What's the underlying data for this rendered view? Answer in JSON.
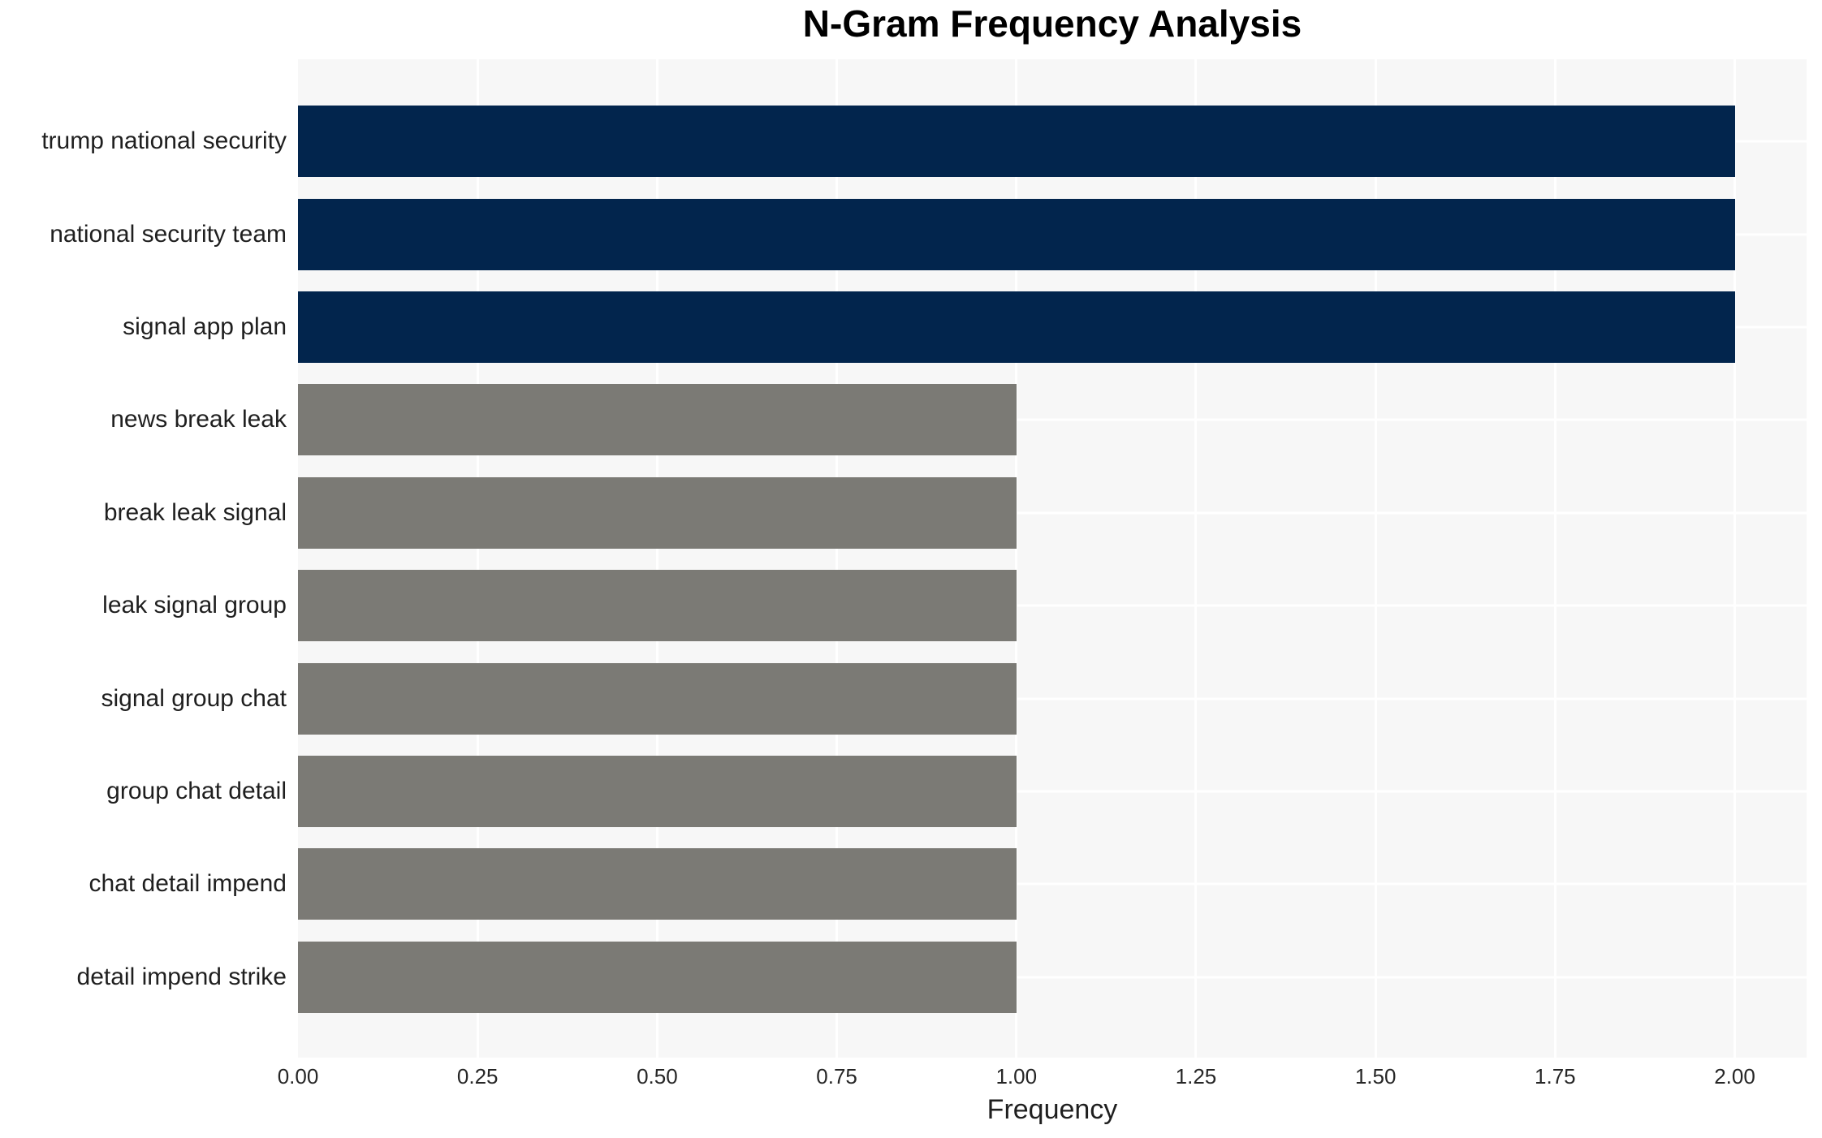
{
  "chart_data": {
    "type": "bar",
    "orientation": "horizontal",
    "title": "N-Gram Frequency Analysis",
    "xlabel": "Frequency",
    "ylabel": "",
    "categories": [
      "trump national security",
      "national security team",
      "signal app plan",
      "news break leak",
      "break leak signal",
      "leak signal group",
      "signal group chat",
      "group chat detail",
      "chat detail impend",
      "detail impend strike"
    ],
    "values": [
      2,
      2,
      2,
      1,
      1,
      1,
      1,
      1,
      1,
      1
    ],
    "bar_colors": [
      "#02254d",
      "#02254d",
      "#02254d",
      "#7b7a75",
      "#7b7a75",
      "#7b7a75",
      "#7b7a75",
      "#7b7a75",
      "#7b7a75",
      "#7b7a75"
    ],
    "xlim": [
      0,
      2.1
    ],
    "xticks": [
      {
        "value": 0,
        "label": "0.00"
      },
      {
        "value": 0.25,
        "label": "0.25"
      },
      {
        "value": 0.5,
        "label": "0.50"
      },
      {
        "value": 0.75,
        "label": "0.75"
      },
      {
        "value": 1.0,
        "label": "1.00"
      },
      {
        "value": 1.25,
        "label": "1.25"
      },
      {
        "value": 1.5,
        "label": "1.50"
      },
      {
        "value": 1.75,
        "label": "1.75"
      },
      {
        "value": 2.0,
        "label": "2.00"
      }
    ],
    "grid": true,
    "legend_position": "none",
    "styles": {
      "plot_background": "#f7f7f7",
      "gridline_color": "#ffffff",
      "bar_color_high": "#02254d",
      "bar_color_low": "#7b7a75",
      "text_color": "#1f1f1f",
      "tick_color": "#262626",
      "title_color": "#000000"
    }
  }
}
